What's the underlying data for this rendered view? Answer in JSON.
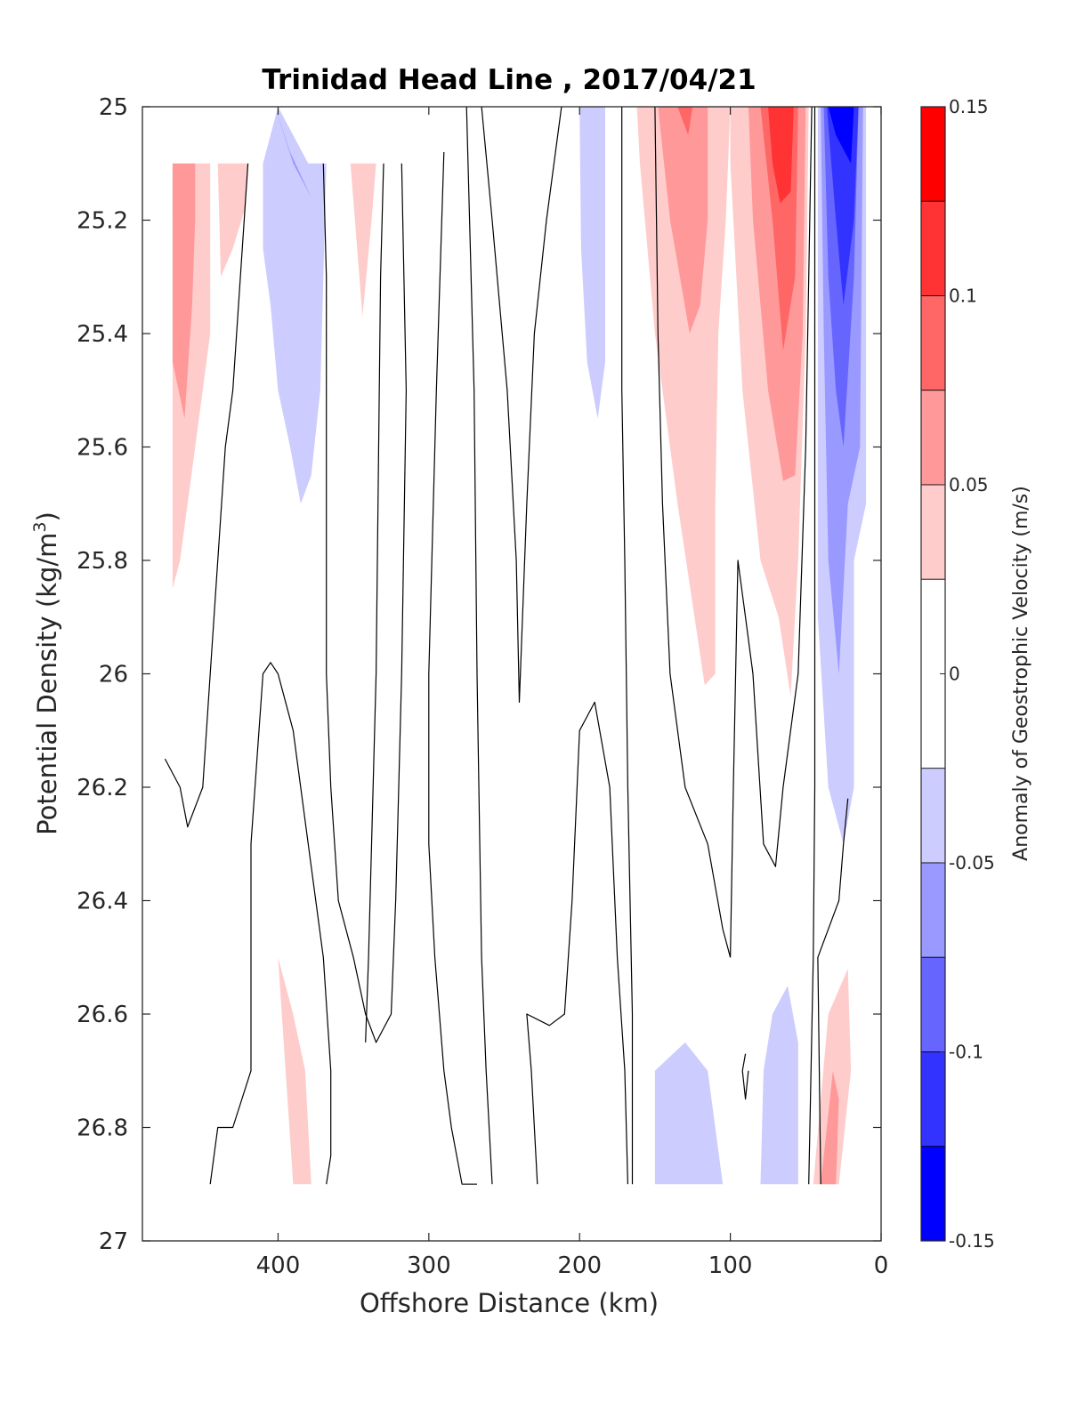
{
  "chart_data": {
    "type": "contour",
    "title": "Trinidad Head Line , 2017/04/21",
    "xlabel": "Offshore Distance (km)",
    "ylabel": "Potential Density (kg/m",
    "ylabel_superscript": "3",
    "ylabel_suffix": ")",
    "colorbar_label": "Anomaly of Geostrophic Velocity (m/s)",
    "xlim": [
      490,
      0
    ],
    "ylim": [
      25.0,
      27.0
    ],
    "x_reversed": true,
    "y_reversed": true,
    "xticks": [
      400,
      300,
      200,
      100,
      0
    ],
    "xtick_labels": [
      "400",
      "300",
      "200",
      "100",
      "0"
    ],
    "yticks": [
      25,
      25.2,
      25.4,
      25.6,
      25.8,
      26,
      26.2,
      26.4,
      26.6,
      26.8,
      27
    ],
    "ytick_labels": [
      "25",
      "25.2",
      "25.4",
      "25.6",
      "25.8",
      "26",
      "26.2",
      "26.4",
      "26.6",
      "26.8",
      "27"
    ],
    "colorbar": {
      "range": [
        -0.15,
        0.15
      ],
      "ticks": [
        0.15,
        0.1,
        0.05,
        0,
        -0.05,
        -0.1,
        -0.15
      ],
      "tick_labels": [
        "0.15",
        "0.1",
        "0.05",
        "0",
        "-0.05",
        "-0.1",
        "-0.15"
      ],
      "levels": [
        {
          "lo": 0.125,
          "hi": 0.15,
          "color": "#ff0000"
        },
        {
          "lo": 0.1,
          "hi": 0.125,
          "color": "#ff3333"
        },
        {
          "lo": 0.075,
          "hi": 0.1,
          "color": "#ff6666"
        },
        {
          "lo": 0.05,
          "hi": 0.075,
          "color": "#ff9999"
        },
        {
          "lo": 0.025,
          "hi": 0.05,
          "color": "#ffcccc"
        },
        {
          "lo": -0.025,
          "hi": 0.025,
          "color": "#ffffff"
        },
        {
          "lo": -0.05,
          "hi": -0.025,
          "color": "#ccccff"
        },
        {
          "lo": -0.075,
          "hi": -0.05,
          "color": "#9999ff"
        },
        {
          "lo": -0.1,
          "hi": -0.075,
          "color": "#6666ff"
        },
        {
          "lo": -0.125,
          "hi": -0.1,
          "color": "#3333ff"
        },
        {
          "lo": -0.15,
          "hi": -0.125,
          "color": "#0000ff"
        }
      ]
    },
    "filled_regions": [
      {
        "color": "#ffcccc",
        "points": [
          [
            470,
            25.1
          ],
          [
            445,
            25.1
          ],
          [
            445,
            25.4
          ],
          [
            455,
            25.6
          ],
          [
            465,
            25.8
          ],
          [
            470,
            25.85
          ]
        ]
      },
      {
        "color": "#ff9999",
        "points": [
          [
            470,
            25.1
          ],
          [
            455,
            25.1
          ],
          [
            455,
            25.2
          ],
          [
            457,
            25.35
          ],
          [
            462,
            25.55
          ],
          [
            470,
            25.45
          ]
        ]
      },
      {
        "color": "#ffcccc",
        "points": [
          [
            440,
            25.1
          ],
          [
            420,
            25.1
          ],
          [
            422,
            25.18
          ],
          [
            430,
            25.25
          ],
          [
            438,
            25.3
          ]
        ]
      },
      {
        "color": "#ccccff",
        "points": [
          [
            410,
            25.1
          ],
          [
            400,
            25.0
          ],
          [
            380,
            25.1
          ],
          [
            368,
            25.1
          ],
          [
            370,
            25.3
          ],
          [
            372,
            25.5
          ],
          [
            378,
            25.65
          ],
          [
            385,
            25.7
          ],
          [
            392,
            25.6
          ],
          [
            400,
            25.5
          ],
          [
            405,
            25.35
          ],
          [
            410,
            25.25
          ]
        ]
      },
      {
        "color": "#9999ff",
        "points": [
          [
            402,
            25.0
          ],
          [
            390,
            25.1
          ],
          [
            378,
            25.16
          ],
          [
            392,
            25.08
          ]
        ]
      },
      {
        "color": "#ffcccc",
        "points": [
          [
            352,
            25.1
          ],
          [
            335,
            25.1
          ],
          [
            338,
            25.2
          ],
          [
            344,
            25.37
          ]
        ]
      },
      {
        "color": "#ccccff",
        "points": [
          [
            200,
            25.0
          ],
          [
            183,
            25.0
          ],
          [
            183,
            25.45
          ],
          [
            188,
            25.55
          ],
          [
            195,
            25.45
          ],
          [
            199,
            25.25
          ]
        ]
      },
      {
        "color": "#ffcccc",
        "points": [
          [
            162,
            25.0
          ],
          [
            100,
            25.0
          ],
          [
            103,
            25.2
          ],
          [
            108,
            25.4
          ],
          [
            110,
            25.7
          ],
          [
            110,
            26.0
          ],
          [
            117,
            26.02
          ],
          [
            135,
            25.7
          ],
          [
            150,
            25.4
          ],
          [
            160,
            25.1
          ]
        ]
      },
      {
        "color": "#ff9999",
        "points": [
          [
            148,
            25.0
          ],
          [
            115,
            25.0
          ],
          [
            115,
            25.2
          ],
          [
            120,
            25.35
          ],
          [
            127,
            25.4
          ],
          [
            140,
            25.2
          ]
        ]
      },
      {
        "color": "#ff6666",
        "points": [
          [
            135,
            25.0
          ],
          [
            125,
            25.0
          ],
          [
            128,
            25.05
          ]
        ]
      },
      {
        "color": "#ffcccc",
        "points": [
          [
            100,
            25.0
          ],
          [
            48,
            25.0
          ],
          [
            50,
            25.4
          ],
          [
            55,
            25.8
          ],
          [
            60,
            26.04
          ],
          [
            68,
            25.9
          ],
          [
            80,
            25.8
          ],
          [
            92,
            25.5
          ],
          [
            100,
            25.1
          ]
        ]
      },
      {
        "color": "#ff9999",
        "points": [
          [
            88,
            25.0
          ],
          [
            50,
            25.0
          ],
          [
            52,
            25.4
          ],
          [
            57,
            25.65
          ],
          [
            65,
            25.66
          ],
          [
            75,
            25.5
          ],
          [
            85,
            25.2
          ]
        ]
      },
      {
        "color": "#ff6666",
        "points": [
          [
            80,
            25.0
          ],
          [
            55,
            25.0
          ],
          [
            57,
            25.3
          ],
          [
            65,
            25.43
          ],
          [
            72,
            25.2
          ]
        ]
      },
      {
        "color": "#ff3333",
        "points": [
          [
            75,
            25.0
          ],
          [
            58,
            25.0
          ],
          [
            60,
            25.15
          ],
          [
            67,
            25.17
          ],
          [
            72,
            25.1
          ]
        ]
      },
      {
        "color": "#ccccff",
        "points": [
          [
            42,
            25.0
          ],
          [
            10,
            25.0
          ],
          [
            10,
            25.7
          ],
          [
            18,
            25.8
          ],
          [
            18,
            26.2
          ],
          [
            25,
            26.3
          ],
          [
            35,
            26.2
          ],
          [
            42,
            25.9
          ]
        ]
      },
      {
        "color": "#9999ff",
        "points": [
          [
            40,
            25.0
          ],
          [
            12,
            25.0
          ],
          [
            14,
            25.6
          ],
          [
            22,
            25.7
          ],
          [
            28,
            26.0
          ],
          [
            35,
            25.8
          ],
          [
            38,
            25.4
          ]
        ]
      },
      {
        "color": "#6666ff",
        "points": [
          [
            38,
            25.0
          ],
          [
            15,
            25.0
          ],
          [
            18,
            25.3
          ],
          [
            25,
            25.6
          ],
          [
            30,
            25.5
          ],
          [
            35,
            25.3
          ]
        ]
      },
      {
        "color": "#3333ff",
        "points": [
          [
            36,
            25.0
          ],
          [
            15,
            25.0
          ],
          [
            18,
            25.2
          ],
          [
            25,
            25.35
          ],
          [
            30,
            25.2
          ]
        ]
      },
      {
        "color": "#0000ff",
        "points": [
          [
            35,
            25.0
          ],
          [
            18,
            25.0
          ],
          [
            20,
            25.1
          ],
          [
            30,
            25.05
          ]
        ]
      },
      {
        "color": "#ffcccc",
        "points": [
          [
            400,
            26.5
          ],
          [
            390,
            26.6
          ],
          [
            382,
            26.7
          ],
          [
            378,
            26.9
          ],
          [
            390,
            26.9
          ],
          [
            395,
            26.7
          ]
        ]
      },
      {
        "color": "#ccccff",
        "points": [
          [
            150,
            26.9
          ],
          [
            150,
            26.7
          ],
          [
            130,
            26.65
          ],
          [
            115,
            26.7
          ],
          [
            105,
            26.9
          ]
        ]
      },
      {
        "color": "#ccccff",
        "points": [
          [
            80,
            26.9
          ],
          [
            78,
            26.7
          ],
          [
            72,
            26.6
          ],
          [
            62,
            26.55
          ],
          [
            55,
            26.65
          ],
          [
            55,
            26.9
          ]
        ]
      },
      {
        "color": "#ffcccc",
        "points": [
          [
            45,
            26.9
          ],
          [
            35,
            26.6
          ],
          [
            22,
            26.52
          ],
          [
            20,
            26.7
          ],
          [
            28,
            26.9
          ]
        ]
      },
      {
        "color": "#ff9999",
        "points": [
          [
            40,
            26.9
          ],
          [
            32,
            26.7
          ],
          [
            28,
            26.75
          ],
          [
            30,
            26.9
          ]
        ]
      }
    ],
    "contour_lines": [
      [
        [
          475,
          26.15
        ],
        [
          465,
          26.2
        ],
        [
          460,
          26.27
        ],
        [
          450,
          26.2
        ],
        [
          445,
          26.0
        ],
        [
          440,
          25.8
        ],
        [
          435,
          25.6
        ],
        [
          430,
          25.5
        ],
        [
          420,
          25.1
        ]
      ],
      [
        [
          445,
          26.9
        ],
        [
          440,
          26.8
        ],
        [
          430,
          26.8
        ],
        [
          418,
          26.7
        ],
        [
          418,
          26.3
        ],
        [
          410,
          26.0
        ],
        [
          405,
          25.98
        ],
        [
          400,
          26.0
        ],
        [
          390,
          26.1
        ],
        [
          380,
          26.3
        ],
        [
          370,
          26.5
        ],
        [
          365,
          26.7
        ],
        [
          365,
          26.8
        ],
        [
          365,
          26.85
        ],
        [
          368,
          26.9
        ]
      ],
      [
        [
          370,
          25.1
        ],
        [
          368,
          25.3
        ],
        [
          368,
          26.0
        ],
        [
          365,
          26.2
        ],
        [
          360,
          26.4
        ],
        [
          350,
          26.5
        ],
        [
          342,
          26.6
        ],
        [
          335,
          26.65
        ],
        [
          325,
          26.6
        ],
        [
          322,
          26.4
        ],
        [
          320,
          26.2
        ],
        [
          318,
          26.0
        ],
        [
          315,
          25.5
        ],
        [
          318,
          25.1
        ]
      ],
      [
        [
          330,
          25.1
        ],
        [
          332,
          25.3
        ],
        [
          335,
          26.0
        ],
        [
          338,
          26.3
        ],
        [
          340,
          26.5
        ],
        [
          342,
          26.65
        ]
      ],
      [
        [
          290,
          25.08
        ],
        [
          295,
          25.5
        ],
        [
          298,
          25.8
        ],
        [
          300,
          26.0
        ],
        [
          300,
          26.3
        ],
        [
          296,
          26.5
        ],
        [
          290,
          26.7
        ],
        [
          285,
          26.8
        ],
        [
          278,
          26.9
        ],
        [
          268,
          26.9
        ]
      ],
      [
        [
          265,
          25.0
        ],
        [
          258,
          25.2
        ],
        [
          248,
          25.5
        ],
        [
          242,
          25.8
        ],
        [
          240,
          26.05
        ],
        [
          235,
          25.7
        ],
        [
          230,
          25.4
        ],
        [
          222,
          25.2
        ],
        [
          212,
          25.0
        ]
      ],
      [
        [
          258,
          26.9
        ],
        [
          262,
          26.7
        ],
        [
          265,
          26.5
        ],
        [
          268,
          26.0
        ],
        [
          270,
          25.5
        ],
        [
          275,
          25.0
        ]
      ],
      [
        [
          228,
          26.9
        ],
        [
          232,
          26.7
        ],
        [
          235,
          26.6
        ],
        [
          220,
          26.62
        ],
        [
          210,
          26.6
        ],
        [
          205,
          26.4
        ],
        [
          200,
          26.1
        ],
        [
          190,
          26.05
        ],
        [
          180,
          26.2
        ],
        [
          175,
          26.5
        ],
        [
          170,
          26.7
        ],
        [
          168,
          26.9
        ]
      ],
      [
        [
          165,
          26.9
        ],
        [
          165,
          26.6
        ],
        [
          168,
          26.2
        ],
        [
          170,
          25.8
        ],
        [
          172,
          25.5
        ],
        [
          172,
          25.0
        ]
      ],
      [
        [
          100,
          26.5
        ],
        [
          105,
          26.45
        ],
        [
          115,
          26.3
        ],
        [
          130,
          26.2
        ],
        [
          140,
          26.0
        ],
        [
          145,
          25.7
        ],
        [
          148,
          25.4
        ],
        [
          150,
          25.0
        ]
      ],
      [
        [
          100,
          26.5
        ],
        [
          98,
          26.2
        ],
        [
          95,
          25.8
        ],
        [
          90,
          25.9
        ],
        [
          85,
          26.0
        ],
        [
          78,
          26.3
        ],
        [
          70,
          26.34
        ],
        [
          65,
          26.2
        ],
        [
          55,
          26.0
        ],
        [
          50,
          25.6
        ],
        [
          46,
          25.0
        ]
      ],
      [
        [
          88,
          26.7
        ],
        [
          90,
          26.75
        ],
        [
          92,
          26.7
        ],
        [
          90,
          26.67
        ]
      ],
      [
        [
          48,
          26.9
        ],
        [
          45,
          26.5
        ],
        [
          44,
          26.2
        ],
        [
          44,
          25.8
        ],
        [
          44,
          25.0
        ]
      ],
      [
        [
          40,
          26.9
        ],
        [
          42,
          26.5
        ],
        [
          28,
          26.4
        ],
        [
          25,
          26.3
        ],
        [
          22,
          26.22
        ]
      ]
    ]
  }
}
